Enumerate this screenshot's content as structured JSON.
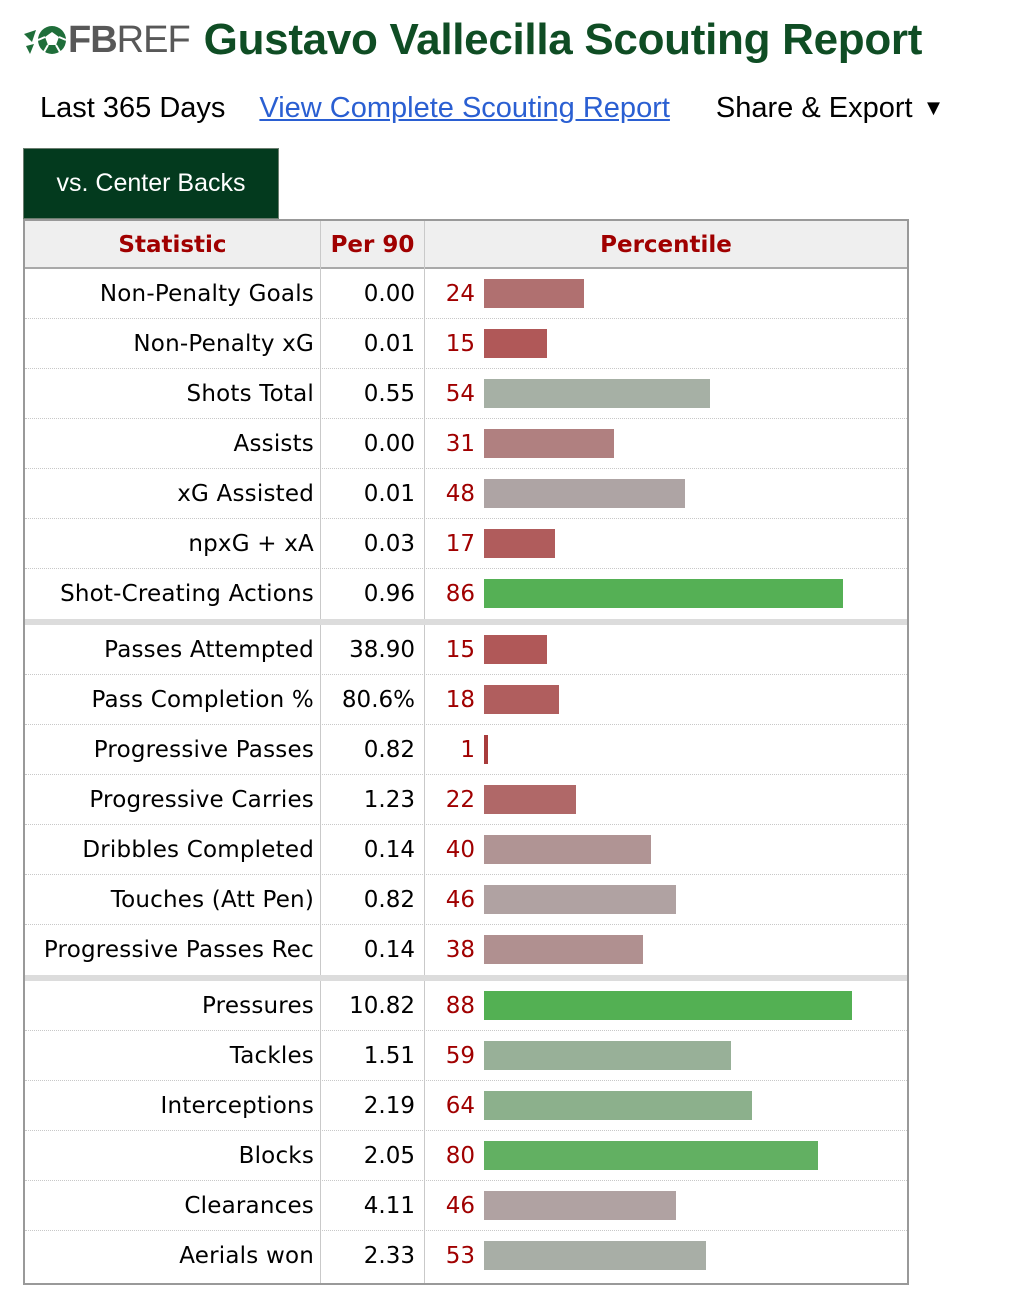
{
  "header": {
    "logo_fb": "FB",
    "logo_ref": "REF",
    "title": "Gustavo Vallecilla Scouting Report"
  },
  "subnav": {
    "period": "Last 365 Days",
    "link": "View Complete Scouting Report",
    "share": "Share & Export",
    "share_arrow": "▼"
  },
  "tab": {
    "label": "vs. Center Backs"
  },
  "table": {
    "columns": [
      "Statistic",
      "Per 90",
      "Percentile"
    ],
    "groups": [
      [
        {
          "stat": "Non-Penalty Goals",
          "per90": "0.00",
          "pct": "24",
          "pct_value": 24,
          "bar_color": "#b07070"
        },
        {
          "stat": "Non-Penalty xG",
          "per90": "0.01",
          "pct": "15",
          "pct_value": 15,
          "bar_color": "#b05858"
        },
        {
          "stat": "Shots Total",
          "per90": "0.55",
          "pct": "54",
          "pct_value": 54,
          "bar_color": "#a6b0a5"
        },
        {
          "stat": "Assists",
          "per90": "0.00",
          "pct": "31",
          "pct_value": 31,
          "bar_color": "#b08080"
        },
        {
          "stat": "xG Assisted",
          "per90": "0.01",
          "pct": "48",
          "pct_value": 48,
          "bar_color": "#aea4a4"
        },
        {
          "stat": "npxG + xA",
          "per90": "0.03",
          "pct": "17",
          "pct_value": 17,
          "bar_color": "#b05c5c"
        },
        {
          "stat": "Shot-Creating Actions",
          "per90": "0.96",
          "pct": "86",
          "pct_value": 86,
          "bar_color": "#55b055"
        }
      ],
      [
        {
          "stat": "Passes Attempted",
          "per90": "38.90",
          "pct": "15",
          "pct_value": 15,
          "bar_color": "#b05858"
        },
        {
          "stat": "Pass Completion %",
          "per90": "80.6%",
          "pct": "18",
          "pct_value": 18,
          "bar_color": "#b05e5e"
        },
        {
          "stat": "Progressive Passes",
          "per90": "0.82",
          "pct": "1",
          "pct_value": 1,
          "bar_color": "#a83c3c"
        },
        {
          "stat": "Progressive Carries",
          "per90": "1.23",
          "pct": "22",
          "pct_value": 22,
          "bar_color": "#b06868"
        },
        {
          "stat": "Dribbles Completed",
          "per90": "0.14",
          "pct": "40",
          "pct_value": 40,
          "bar_color": "#b09494"
        },
        {
          "stat": "Touches (Att Pen)",
          "per90": "0.82",
          "pct": "46",
          "pct_value": 46,
          "bar_color": "#b0a2a2"
        },
        {
          "stat": "Progressive Passes Rec",
          "per90": "0.14",
          "pct": "38",
          "pct_value": 38,
          "bar_color": "#b09090"
        }
      ],
      [
        {
          "stat": "Pressures",
          "per90": "10.82",
          "pct": "88",
          "pct_value": 88,
          "bar_color": "#53b053"
        },
        {
          "stat": "Tackles",
          "per90": "1.51",
          "pct": "59",
          "pct_value": 59,
          "bar_color": "#98b098"
        },
        {
          "stat": "Interceptions",
          "per90": "2.19",
          "pct": "64",
          "pct_value": 64,
          "bar_color": "#8cb08c"
        },
        {
          "stat": "Blocks",
          "per90": "2.05",
          "pct": "80",
          "pct_value": 80,
          "bar_color": "#62b062"
        },
        {
          "stat": "Clearances",
          "per90": "4.11",
          "pct": "46",
          "pct_value": 46,
          "bar_color": "#b0a2a2"
        },
        {
          "stat": "Aerials won",
          "per90": "2.33",
          "pct": "53",
          "pct_value": 53,
          "bar_color": "#a8aea6"
        }
      ]
    ]
  }
}
